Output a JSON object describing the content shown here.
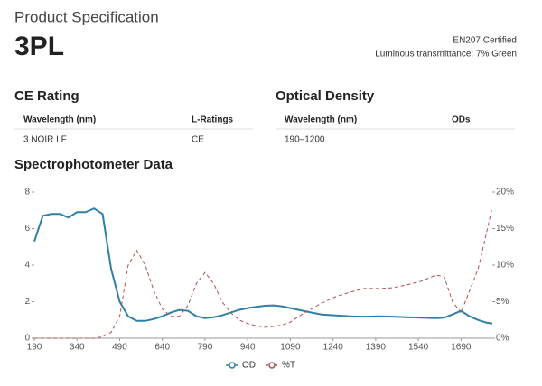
{
  "header": {
    "title": "Product Specification",
    "product": "3PL",
    "certification": "EN207 Certified",
    "transmittance": "Luminous transmittance: 7% Green"
  },
  "ce_rating": {
    "title": "CE Rating",
    "columns": [
      "Wavelength (nm)",
      "L-Ratings"
    ],
    "rows": [
      [
        "3 NOIR I F",
        "CE"
      ]
    ]
  },
  "optical_density": {
    "title": "Optical Density",
    "columns": [
      "Wavelength (nm)",
      "ODs"
    ],
    "rows": [
      [
        "190–1200"
      ]
    ]
  },
  "chart_data": {
    "type": "line",
    "title": "Spectrophotometer Data",
    "x": [
      190,
      220,
      250,
      280,
      310,
      340,
      370,
      400,
      430,
      460,
      490,
      520,
      550,
      580,
      610,
      640,
      670,
      700,
      730,
      760,
      790,
      820,
      850,
      880,
      910,
      940,
      970,
      1000,
      1030,
      1060,
      1090,
      1120,
      1150,
      1200,
      1250,
      1300,
      1350,
      1400,
      1450,
      1500,
      1550,
      1600,
      1630,
      1660,
      1690,
      1720,
      1750,
      1780,
      1800
    ],
    "series": [
      {
        "name": "OD",
        "color": "#2f7fa6",
        "dashed": false,
        "values": [
          5.3,
          6.7,
          6.8,
          6.8,
          6.6,
          6.9,
          6.9,
          7.1,
          6.8,
          3.8,
          2.0,
          1.2,
          0.95,
          0.95,
          1.05,
          1.2,
          1.4,
          1.55,
          1.5,
          1.2,
          1.1,
          1.15,
          1.25,
          1.4,
          1.55,
          1.65,
          1.72,
          1.78,
          1.8,
          1.75,
          1.65,
          1.55,
          1.45,
          1.3,
          1.25,
          1.2,
          1.18,
          1.2,
          1.18,
          1.15,
          1.12,
          1.1,
          1.12,
          1.3,
          1.5,
          1.2,
          1.0,
          0.85,
          0.8
        ]
      },
      {
        "name": "%T",
        "color": "#b05050",
        "dashed": true,
        "axis": "y2",
        "values": [
          0,
          0,
          0,
          0,
          0,
          0,
          0,
          0,
          0.2,
          0.8,
          3,
          10,
          12,
          10,
          6.5,
          4,
          3,
          3,
          4.5,
          7.5,
          9,
          7.5,
          5,
          3.5,
          2.5,
          2,
          1.7,
          1.5,
          1.6,
          1.8,
          2.2,
          3,
          3.7,
          4.8,
          5.7,
          6.3,
          6.8,
          6.8,
          6.9,
          7.3,
          7.8,
          8.6,
          8.5,
          5,
          3.5,
          6.5,
          9.5,
          14.5,
          18
        ]
      }
    ],
    "xlim": [
      190,
      1800
    ],
    "xticks": [
      190,
      340,
      490,
      640,
      790,
      940,
      1090,
      1240,
      1390,
      1540,
      1690
    ],
    "ylim": [
      0,
      8
    ],
    "yticks": [
      0,
      2,
      4,
      6,
      8
    ],
    "y2lim": [
      0,
      20
    ],
    "y2ticks": [
      {
        "value": 0,
        "label": "0%"
      },
      {
        "value": 5,
        "label": "5%"
      },
      {
        "value": 10,
        "label": "10%"
      },
      {
        "value": 15,
        "label": "15%"
      },
      {
        "value": 20,
        "label": "20%"
      }
    ],
    "legend": "bottom",
    "grid": false
  }
}
